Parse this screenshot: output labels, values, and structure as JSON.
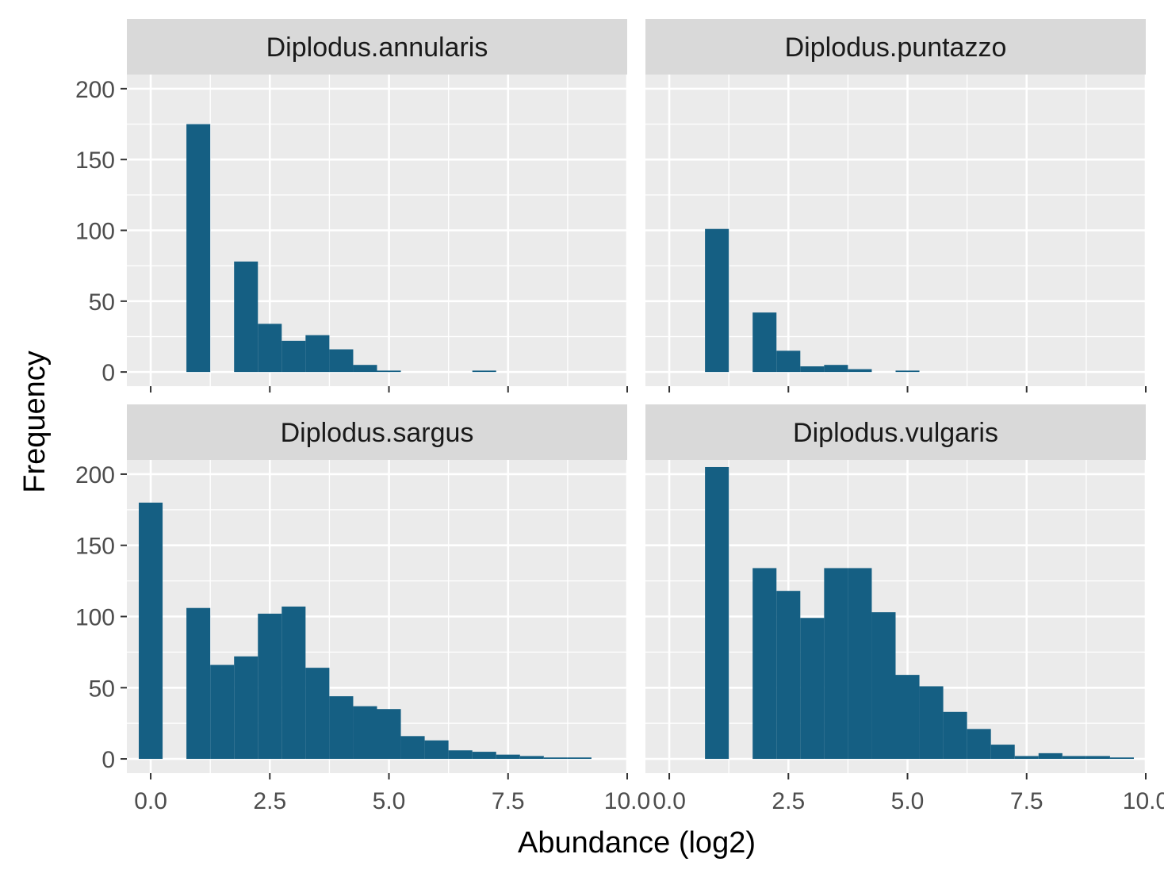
{
  "chart_data": {
    "type": "bar",
    "subtype": "faceted-histogram",
    "xlabel": "Abundance (log2)",
    "ylabel": "Frequency",
    "xlim": [
      -0.5,
      10.0
    ],
    "ylim": [
      -10,
      210
    ],
    "x_ticks": [
      0,
      2.5,
      5,
      7.5,
      10
    ],
    "x_tick_labels": [
      "0.0",
      "2.5",
      "5.0",
      "7.5",
      "10.0"
    ],
    "y_ticks": [
      0,
      50,
      100,
      150,
      200
    ],
    "y_tick_labels": [
      "0",
      "50",
      "100",
      "150",
      "200"
    ],
    "bin_width": 0.5,
    "fill_color": "#155f83",
    "panel_background": "#ebebeb",
    "strip_background": "#d9d9d9",
    "grid": true,
    "facets": [
      {
        "name": "Diplodus.annularis",
        "bin_centers": [
          0,
          0.5,
          1,
          1.5,
          2,
          2.5,
          3,
          3.5,
          4,
          4.5,
          5,
          5.5,
          6,
          6.5,
          7,
          7.5,
          8,
          8.5,
          9,
          9.5
        ],
        "values": [
          0,
          0,
          175,
          0,
          78,
          34,
          22,
          26,
          16,
          5,
          1,
          0,
          0,
          0,
          1,
          0,
          0,
          0,
          0,
          0
        ]
      },
      {
        "name": "Diplodus.puntazzo",
        "bin_centers": [
          0,
          0.5,
          1,
          1.5,
          2,
          2.5,
          3,
          3.5,
          4,
          4.5,
          5,
          5.5,
          6,
          6.5,
          7,
          7.5,
          8,
          8.5,
          9,
          9.5
        ],
        "values": [
          0,
          0,
          101,
          0,
          42,
          15,
          4,
          5,
          2,
          0,
          1,
          0,
          0,
          0,
          0,
          0,
          0,
          0,
          0,
          0
        ]
      },
      {
        "name": "Diplodus.sargus",
        "bin_centers": [
          0,
          0.5,
          1,
          1.5,
          2,
          2.5,
          3,
          3.5,
          4,
          4.5,
          5,
          5.5,
          6,
          6.5,
          7,
          7.5,
          8,
          8.5,
          9,
          9.5
        ],
        "values": [
          180,
          0,
          106,
          66,
          72,
          102,
          107,
          64,
          44,
          37,
          35,
          16,
          13,
          6,
          5,
          3,
          2,
          1,
          1,
          0
        ]
      },
      {
        "name": "Diplodus.vulgaris",
        "bin_centers": [
          0,
          0.5,
          1,
          1.5,
          2,
          2.5,
          3,
          3.5,
          4,
          4.5,
          5,
          5.5,
          6,
          6.5,
          7,
          7.5,
          8,
          8.5,
          9,
          9.5
        ],
        "values": [
          0,
          0,
          205,
          0,
          134,
          118,
          99,
          134,
          134,
          103,
          59,
          51,
          33,
          21,
          10,
          2,
          4,
          2,
          2,
          1
        ]
      }
    ]
  }
}
